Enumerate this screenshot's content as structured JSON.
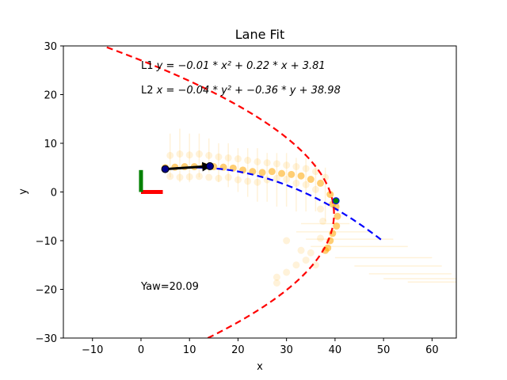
{
  "chart_data": {
    "type": "scatter",
    "title": "Lane Fit",
    "xlabel": "x",
    "ylabel": "y",
    "xlim": [
      -16,
      65
    ],
    "ylim": [
      -30,
      30
    ],
    "xticks": [
      -10,
      0,
      10,
      20,
      30,
      40,
      50,
      60
    ],
    "yticks": [
      -30,
      -20,
      -10,
      0,
      10,
      20,
      30
    ],
    "xtick_labels": [
      "−10",
      "0",
      "10",
      "20",
      "30",
      "40",
      "50",
      "60"
    ],
    "ytick_labels": [
      "−30",
      "−20",
      "−10",
      "0",
      "10",
      "20",
      "30"
    ],
    "grid": false,
    "annotations": {
      "l1_prefix": "L1 ",
      "l1_equation": "y = −0.01 * x² + 0.22 * x + 3.81",
      "l2_prefix": "L2 ",
      "l2_equation": "x = −0.04 * y² + −0.36 * y + 38.98",
      "yaw": "Yaw=20.09"
    },
    "curves": {
      "L1": {
        "form": "y_of_x",
        "a": -0.01,
        "b": 0.22,
        "c": 3.81,
        "x_range": [
          5,
          49.5
        ],
        "color": "#0000ff",
        "dash": true
      },
      "L2": {
        "form": "x_of_y",
        "a": -0.04,
        "b": -0.36,
        "c": 38.98,
        "y_range": [
          -30,
          30
        ],
        "color": "#ff0000",
        "dash": true
      }
    },
    "origin_frame": {
      "x_axis_color": "#ff0000",
      "y_axis_color": "#008000",
      "x_end": [
        4.5,
        0
      ],
      "y_end": [
        0,
        4.5
      ]
    },
    "arrow": {
      "from": [
        5,
        4.7
      ],
      "to": [
        14.2,
        5.3
      ],
      "color": "#000000"
    },
    "endpoints": {
      "points": [
        [
          5,
          4.7
        ],
        [
          14.2,
          5.3
        ]
      ],
      "color": "#00008b"
    },
    "intersection_point": {
      "point": [
        40.2,
        -1.8
      ],
      "color": "#008000"
    },
    "strong_points": {
      "color": "#ffa500",
      "points": [
        [
          5,
          5.0
        ],
        [
          7,
          5.1
        ],
        [
          9,
          5.2
        ],
        [
          11,
          5.2
        ],
        [
          13,
          5.3
        ],
        [
          15,
          5.2
        ],
        [
          17,
          5.1
        ],
        [
          19,
          4.9
        ],
        [
          21,
          4.5
        ],
        [
          23,
          4.2
        ],
        [
          25,
          4.0
        ],
        [
          27,
          4.2
        ],
        [
          29,
          3.8
        ],
        [
          31,
          3.6
        ],
        [
          33,
          3.3
        ],
        [
          35,
          2.6
        ],
        [
          37,
          1.8
        ],
        [
          39,
          -0.5
        ],
        [
          39.5,
          -2.5
        ],
        [
          40.2,
          -3.0
        ],
        [
          40.5,
          -5.0
        ],
        [
          40.3,
          -7.0
        ],
        [
          39.5,
          -8.5
        ],
        [
          39,
          -10.0
        ],
        [
          38.5,
          -11.5
        ],
        [
          38,
          -12.0
        ]
      ]
    },
    "faint_points": {
      "color": "#ffa500",
      "points": [
        [
          6,
          7.5
        ],
        [
          8,
          7.8
        ],
        [
          10,
          7.6
        ],
        [
          12,
          7.8
        ],
        [
          14,
          7.5
        ],
        [
          16,
          7.2
        ],
        [
          18,
          7.0
        ],
        [
          20,
          6.8
        ],
        [
          22,
          6.5
        ],
        [
          24,
          6.2
        ],
        [
          26,
          6.0
        ],
        [
          28,
          5.8
        ],
        [
          30,
          5.5
        ],
        [
          32,
          5.2
        ],
        [
          34,
          4.8
        ],
        [
          36,
          4.2
        ],
        [
          38,
          3.0
        ],
        [
          6,
          3.2
        ],
        [
          8,
          3.0
        ],
        [
          10,
          3.1
        ],
        [
          12,
          3.2
        ],
        [
          14,
          3.0
        ],
        [
          16,
          2.8
        ],
        [
          18,
          3.0
        ],
        [
          20,
          2.5
        ],
        [
          22,
          2.2
        ],
        [
          24,
          2.0
        ],
        [
          26,
          2.5
        ],
        [
          28,
          2.8
        ],
        [
          30,
          2.6
        ],
        [
          32,
          1.8
        ],
        [
          34,
          1.5
        ],
        [
          36,
          0.5
        ],
        [
          37,
          -3.5
        ],
        [
          37.5,
          -6
        ],
        [
          37,
          -9.5
        ],
        [
          35,
          -12.5
        ],
        [
          34,
          -14
        ],
        [
          32,
          -15
        ],
        [
          30,
          -16.5
        ],
        [
          28,
          -17.5
        ],
        [
          28,
          -18.7
        ],
        [
          30,
          -10
        ],
        [
          33,
          -12
        ],
        [
          36,
          -15
        ]
      ]
    },
    "xerr_bars": {
      "color": "#ffa500",
      "bars": [
        [
          33,
          43,
          -6.5
        ],
        [
          32,
          47,
          -8.2
        ],
        [
          34,
          52,
          -9.7
        ],
        [
          35,
          55,
          -11.2
        ],
        [
          40,
          60,
          -13.5
        ],
        [
          44,
          62,
          -15.2
        ],
        [
          47,
          64,
          -16.8
        ],
        [
          50,
          65,
          -17.8
        ],
        [
          55,
          65,
          -18.5
        ]
      ]
    },
    "yerr_bars": {
      "color": "#ffa500",
      "bars": [
        [
          6,
          3,
          12
        ],
        [
          8,
          2,
          13
        ],
        [
          10,
          2,
          12
        ],
        [
          12,
          3,
          12
        ],
        [
          14,
          4,
          11
        ],
        [
          16,
          2,
          10
        ],
        [
          18,
          1,
          10
        ],
        [
          20,
          0,
          9
        ],
        [
          22,
          -1,
          9
        ],
        [
          24,
          -2,
          9
        ],
        [
          26,
          -2,
          8
        ],
        [
          28,
          -3,
          8
        ],
        [
          30,
          -3,
          8
        ],
        [
          32,
          -4,
          7
        ],
        [
          34,
          -4,
          7
        ],
        [
          36,
          -4,
          6
        ],
        [
          38,
          -6,
          5
        ]
      ]
    }
  }
}
